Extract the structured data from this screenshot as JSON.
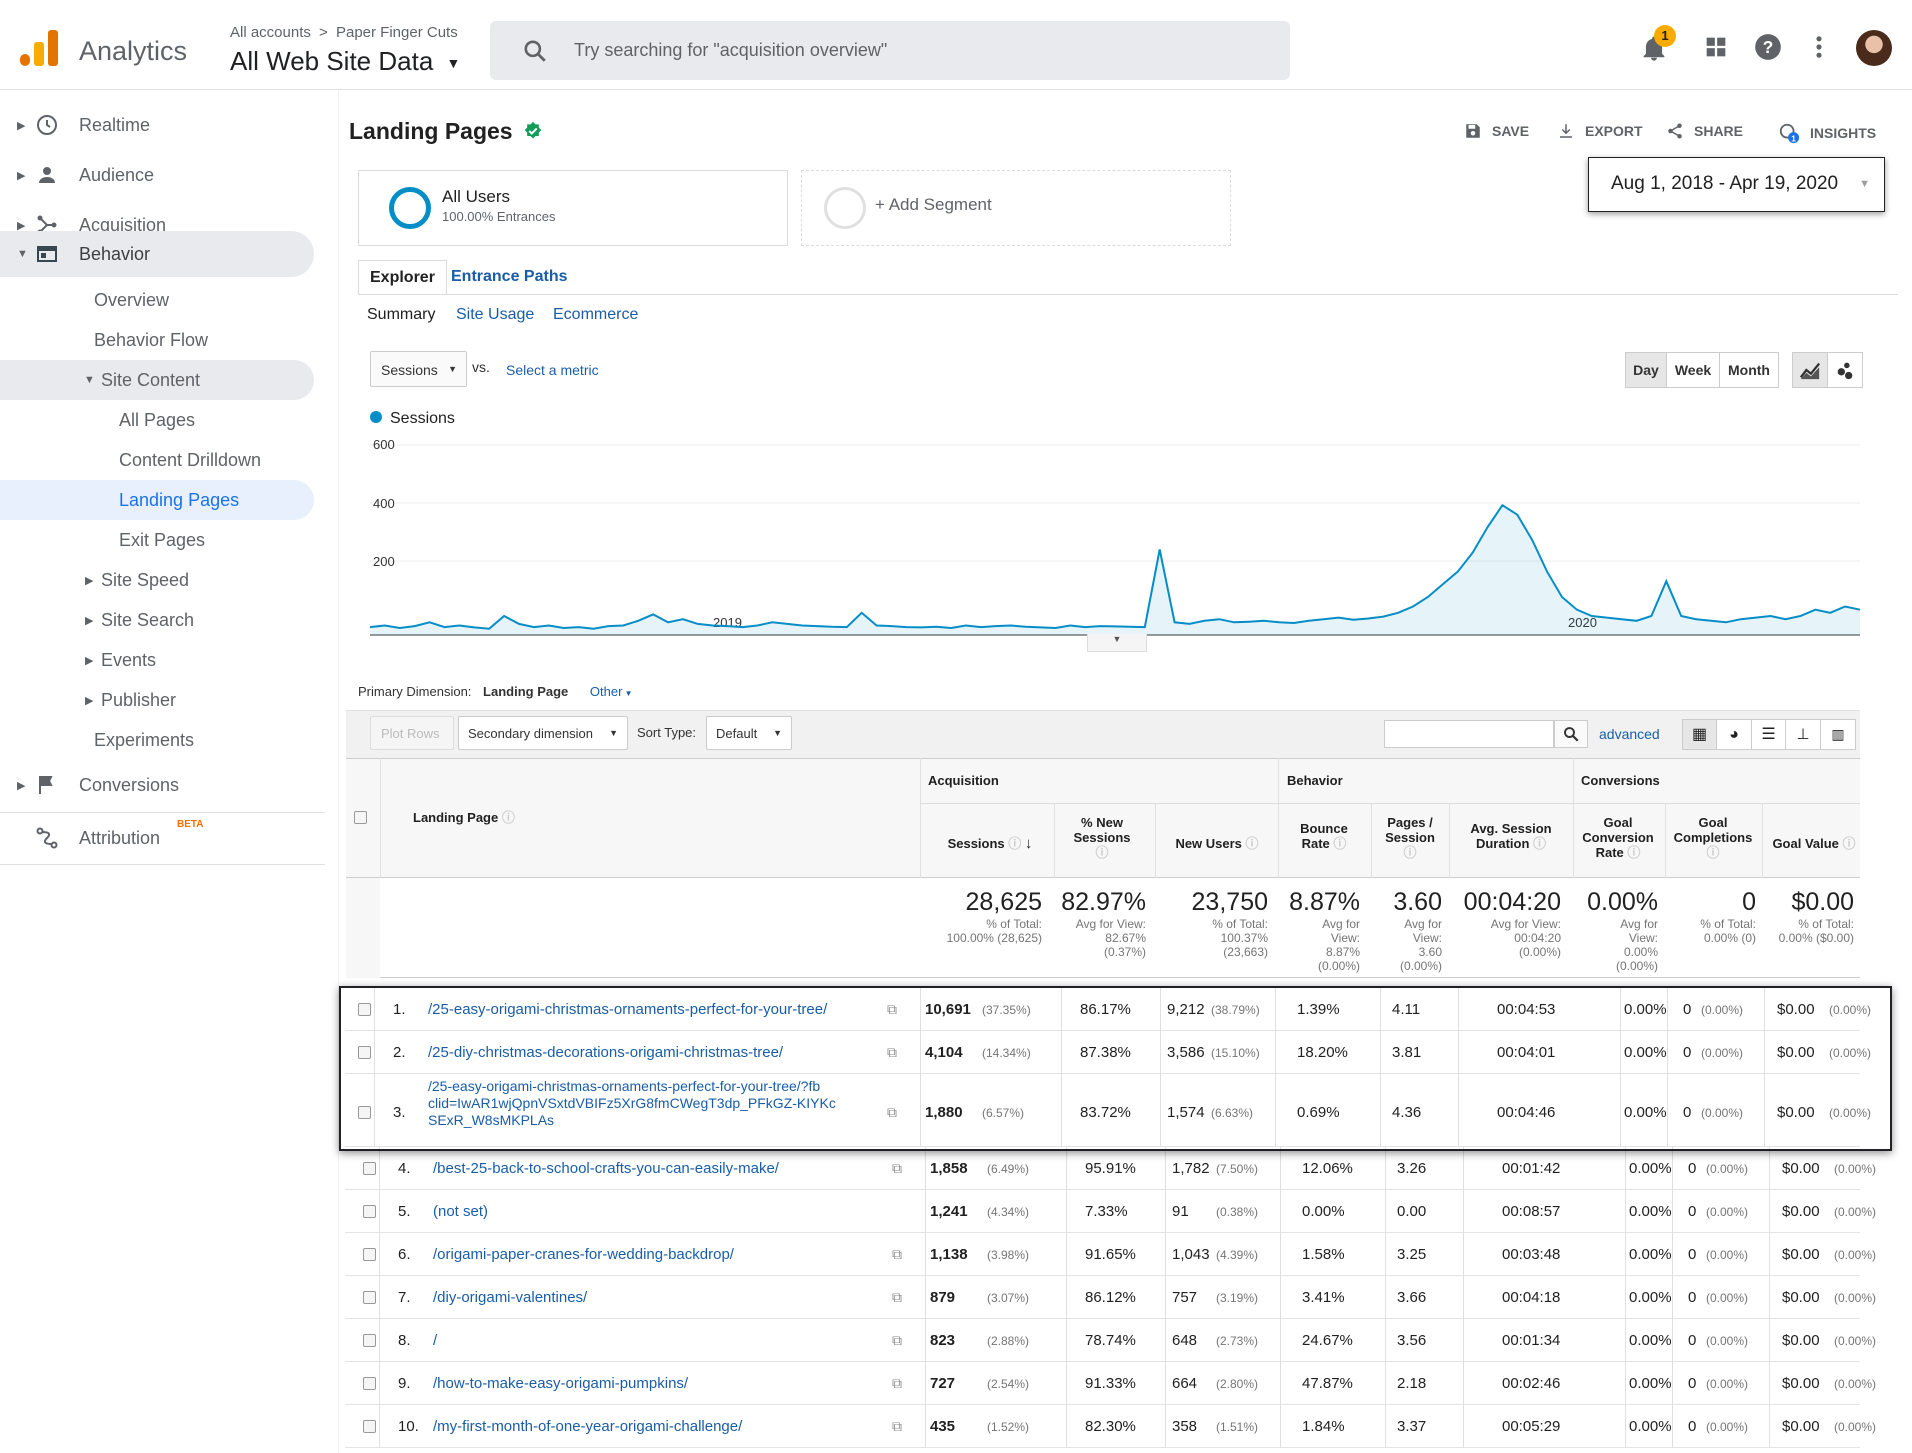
{
  "header": {
    "app_name": "Analytics",
    "crumb_all": "All accounts",
    "crumb_sep": ">",
    "crumb_property": "Paper Finger Cuts",
    "view_name": "All Web Site Data",
    "search_placeholder": "Try searching for \"acquisition overview\"",
    "notification_count": "1"
  },
  "sidebar": {
    "realtime": "Realtime",
    "audience": "Audience",
    "acquisition": "Acquisition",
    "behavior": "Behavior",
    "overview": "Overview",
    "behavior_flow": "Behavior Flow",
    "site_content": "Site Content",
    "all_pages": "All Pages",
    "content_drilldown": "Content Drilldown",
    "landing_pages": "Landing Pages",
    "exit_pages": "Exit Pages",
    "site_speed": "Site Speed",
    "site_search": "Site Search",
    "events": "Events",
    "publisher": "Publisher",
    "experiments": "Experiments",
    "conversions": "Conversions",
    "attribution": "Attribution",
    "attribution_badge": "BETA"
  },
  "page": {
    "title": "Landing Pages",
    "save": "SAVE",
    "export": "EXPORT",
    "share": "SHARE",
    "insights": "INSIGHTS",
    "segment_name": "All Users",
    "segment_sub": "100.00% Entrances",
    "add_segment": "+ Add Segment",
    "date_range": "Aug 1, 2018 - Apr 19, 2020",
    "tab_explorer": "Explorer",
    "tab_entrance": "Entrance Paths",
    "sub_summary": "Summary",
    "sub_usage": "Site Usage",
    "sub_ecom": "Ecommerce",
    "metric": "Sessions",
    "vs": "vs.",
    "select_metric": "Select a metric",
    "day": "Day",
    "week": "Week",
    "month": "Month",
    "primary_dim_label": "Primary Dimension:",
    "primary_dim": "Landing Page",
    "other": "Other",
    "plot_rows": "Plot Rows",
    "secondary_dim": "Secondary dimension",
    "sort_type_label": "Sort Type:",
    "sort_type": "Default",
    "advanced": "advanced"
  },
  "chart_data": {
    "type": "line",
    "series": [
      {
        "name": "Sessions",
        "color": "#058dc7"
      }
    ],
    "y_ticks": [
      "600",
      "400",
      "200"
    ],
    "x_ticks": [
      "2019",
      "2020"
    ],
    "ylim": [
      0,
      600
    ],
    "description_points": [
      25,
      30,
      22,
      28,
      40,
      25,
      30,
      24,
      20,
      60,
      35,
      25,
      30,
      22,
      25,
      20,
      28,
      30,
      45,
      65,
      40,
      50,
      35,
      30,
      28,
      25,
      30,
      40,
      35,
      30,
      28,
      26,
      25,
      70,
      30,
      28,
      25,
      24,
      26,
      22,
      30,
      25,
      28,
      30,
      26,
      24,
      22,
      30,
      25,
      28,
      27,
      26,
      25,
      270,
      40,
      35,
      45,
      50,
      40,
      42,
      45,
      40,
      38,
      45,
      50,
      55,
      48,
      52,
      58,
      70,
      90,
      120,
      160,
      200,
      260,
      340,
      410,
      380,
      300,
      200,
      120,
      80,
      60,
      55,
      50,
      45,
      60,
      170,
      60,
      50,
      45,
      40,
      50,
      55,
      60,
      50,
      60,
      80,
      70,
      90,
      80
    ]
  },
  "table": {
    "group_acq": "Acquisition",
    "group_beh": "Behavior",
    "group_conv": "Conversions",
    "col_landing": "Landing Page",
    "col_sessions": "Sessions",
    "col_new_sess": "% New Sessions",
    "col_new_users": "New Users",
    "col_bounce": "Bounce Rate",
    "col_pps": "Pages / Session",
    "col_dur": "Avg. Session Duration",
    "col_gcr": "Goal Conversion Rate",
    "col_gc": "Goal Completions",
    "col_gv": "Goal Value",
    "totals": {
      "sessions": "28,625",
      "sessions_sub1": "% of Total:",
      "sessions_sub2": "100.00% (28,625)",
      "new_sess": "82.97%",
      "new_sess_sub1": "Avg for View:",
      "new_sess_sub2": "82.67%",
      "new_sess_sub3": "(0.37%)",
      "new_users": "23,750",
      "new_users_sub1": "% of Total:",
      "new_users_sub2": "100.37%",
      "new_users_sub3": "(23,663)",
      "bounce": "8.87%",
      "bounce_sub1": "Avg for",
      "bounce_sub2": "View:",
      "bounce_sub3": "8.87%",
      "bounce_sub4": "(0.00%)",
      "pps": "3.60",
      "pps_sub1": "Avg for",
      "pps_sub2": "View:",
      "pps_sub3": "3.60",
      "pps_sub4": "(0.00%)",
      "dur": "00:04:20",
      "dur_sub1": "Avg for View:",
      "dur_sub2": "00:04:20",
      "dur_sub3": "(0.00%)",
      "gcr": "0.00%",
      "gcr_sub1": "Avg for",
      "gcr_sub2": "View:",
      "gcr_sub3": "0.00%",
      "gcr_sub4": "(0.00%)",
      "gc": "0",
      "gc_sub1": "% of Total:",
      "gc_sub2": "0.00% (0)",
      "gv": "$0.00",
      "gv_sub1": "% of Total:",
      "gv_sub2": "0.00% ($0.00)"
    },
    "rows": [
      {
        "n": "1.",
        "page": "/25-easy-origami-christmas-ornaments-perfect-for-your-tree/",
        "s": "10,691",
        "sp": "(37.35%)",
        "ns": "86.17%",
        "nu": "9,212",
        "nup": "(38.79%)",
        "br": "1.39%",
        "pps": "4.11",
        "dur": "00:04:53",
        "gcr": "0.00%",
        "gc": "0",
        "gcp": "(0.00%)",
        "gv": "$0.00",
        "gvp": "(0.00%)"
      },
      {
        "n": "2.",
        "page": "/25-diy-christmas-decorations-origami-christmas-tree/",
        "s": "4,104",
        "sp": "(14.34%)",
        "ns": "87.38%",
        "nu": "3,586",
        "nup": "(15.10%)",
        "br": "18.20%",
        "pps": "3.81",
        "dur": "00:04:01",
        "gcr": "0.00%",
        "gc": "0",
        "gcp": "(0.00%)",
        "gv": "$0.00",
        "gvp": "(0.00%)"
      },
      {
        "n": "3.",
        "page_l1": "/25-easy-origami-christmas-ornaments-perfect-for-your-tree/?fb",
        "page_l2": "clid=IwAR1wjQpnVSxtdVBIFz5XrG8fmCWegT3dp_PFkGZ-KIYKc",
        "page_l3": "SExR_W8sMKPLAs",
        "s": "1,880",
        "sp": "(6.57%)",
        "ns": "83.72%",
        "nu": "1,574",
        "nup": "(6.63%)",
        "br": "0.69%",
        "pps": "4.36",
        "dur": "00:04:46",
        "gcr": "0.00%",
        "gc": "0",
        "gcp": "(0.00%)",
        "gv": "$0.00",
        "gvp": "(0.00%)"
      },
      {
        "n": "4.",
        "page": "/best-25-back-to-school-crafts-you-can-easily-make/",
        "s": "1,858",
        "sp": "(6.49%)",
        "ns": "95.91%",
        "nu": "1,782",
        "nup": "(7.50%)",
        "br": "12.06%",
        "pps": "3.26",
        "dur": "00:01:42",
        "gcr": "0.00%",
        "gc": "0",
        "gcp": "(0.00%)",
        "gv": "$0.00",
        "gvp": "(0.00%)"
      },
      {
        "n": "5.",
        "page": "(not set)",
        "s": "1,241",
        "sp": "(4.34%)",
        "ns": "7.33%",
        "nu": "91",
        "nup": "(0.38%)",
        "br": "0.00%",
        "pps": "0.00",
        "dur": "00:08:57",
        "gcr": "0.00%",
        "gc": "0",
        "gcp": "(0.00%)",
        "gv": "$0.00",
        "gvp": "(0.00%)"
      },
      {
        "n": "6.",
        "page": "/origami-paper-cranes-for-wedding-backdrop/",
        "s": "1,138",
        "sp": "(3.98%)",
        "ns": "91.65%",
        "nu": "1,043",
        "nup": "(4.39%)",
        "br": "1.58%",
        "pps": "3.25",
        "dur": "00:03:48",
        "gcr": "0.00%",
        "gc": "0",
        "gcp": "(0.00%)",
        "gv": "$0.00",
        "gvp": "(0.00%)"
      },
      {
        "n": "7.",
        "page": "/diy-origami-valentines/",
        "s": "879",
        "sp": "(3.07%)",
        "ns": "86.12%",
        "nu": "757",
        "nup": "(3.19%)",
        "br": "3.41%",
        "pps": "3.66",
        "dur": "00:04:18",
        "gcr": "0.00%",
        "gc": "0",
        "gcp": "(0.00%)",
        "gv": "$0.00",
        "gvp": "(0.00%)"
      },
      {
        "n": "8.",
        "page": "/",
        "s": "823",
        "sp": "(2.88%)",
        "ns": "78.74%",
        "nu": "648",
        "nup": "(2.73%)",
        "br": "24.67%",
        "pps": "3.56",
        "dur": "00:01:34",
        "gcr": "0.00%",
        "gc": "0",
        "gcp": "(0.00%)",
        "gv": "$0.00",
        "gvp": "(0.00%)"
      },
      {
        "n": "9.",
        "page": "/how-to-make-easy-origami-pumpkins/",
        "s": "727",
        "sp": "(2.54%)",
        "ns": "91.33%",
        "nu": "664",
        "nup": "(2.80%)",
        "br": "47.87%",
        "pps": "2.18",
        "dur": "00:02:46",
        "gcr": "0.00%",
        "gc": "0",
        "gcp": "(0.00%)",
        "gv": "$0.00",
        "gvp": "(0.00%)"
      },
      {
        "n": "10.",
        "page": "/my-first-month-of-one-year-origami-challenge/",
        "s": "435",
        "sp": "(1.52%)",
        "ns": "82.30%",
        "nu": "358",
        "nup": "(1.51%)",
        "br": "1.84%",
        "pps": "3.37",
        "dur": "00:05:29",
        "gcr": "0.00%",
        "gc": "0",
        "gcp": "(0.00%)",
        "gv": "$0.00",
        "gvp": "(0.00%)"
      }
    ]
  }
}
